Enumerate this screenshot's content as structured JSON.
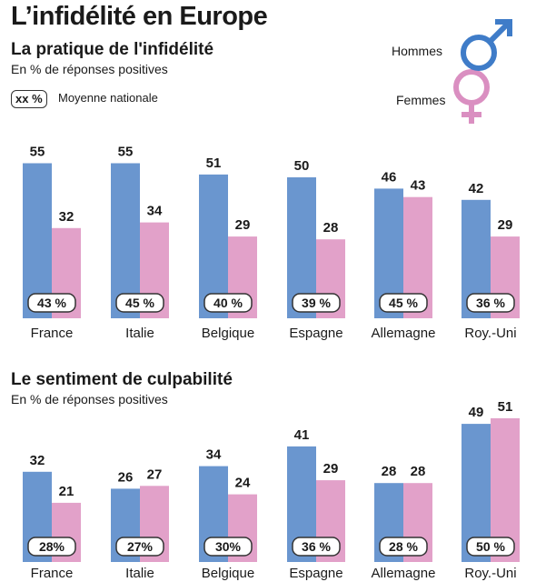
{
  "title": "L’infidélité en Europe",
  "legend": {
    "avg_box": "xx %",
    "avg_label": "Moyenne nationale",
    "men_label": "Hommes",
    "women_label": "Femmes"
  },
  "colors": {
    "men": "#6a96cf",
    "women": "#e2a1c9",
    "men_symbol": "#3f7cc8",
    "women_symbol": "#da8fc1"
  },
  "chart_data": [
    {
      "type": "bar",
      "title": "La pratique de l'infidélité",
      "subtitle": "En % de réponses positives",
      "categories": [
        "France",
        "Italie",
        "Belgique",
        "Espagne",
        "Allemagne",
        "Roy.-Uni"
      ],
      "series": [
        {
          "name": "Hommes",
          "values": [
            55,
            55,
            51,
            50,
            46,
            42
          ]
        },
        {
          "name": "Femmes",
          "values": [
            32,
            34,
            29,
            28,
            43,
            29
          ]
        }
      ],
      "averages": [
        "43 %",
        "45 %",
        "40 %",
        "39 %",
        "45 %",
        "36 %"
      ],
      "ylim": [
        0,
        60
      ]
    },
    {
      "type": "bar",
      "title": "Le sentiment de culpabilité",
      "subtitle": "En % de réponses positives",
      "categories": [
        "France",
        "Italie",
        "Belgique",
        "Espagne",
        "Allemagne",
        "Roy.-Uni"
      ],
      "series": [
        {
          "name": "Hommes",
          "values": [
            32,
            26,
            34,
            41,
            28,
            49
          ]
        },
        {
          "name": "Femmes",
          "values": [
            21,
            27,
            24,
            29,
            28,
            51
          ]
        }
      ],
      "averages": [
        "28%",
        "27%",
        "30%",
        "36 %",
        "28 %",
        "50 %"
      ],
      "ylim": [
        0,
        60
      ]
    }
  ]
}
